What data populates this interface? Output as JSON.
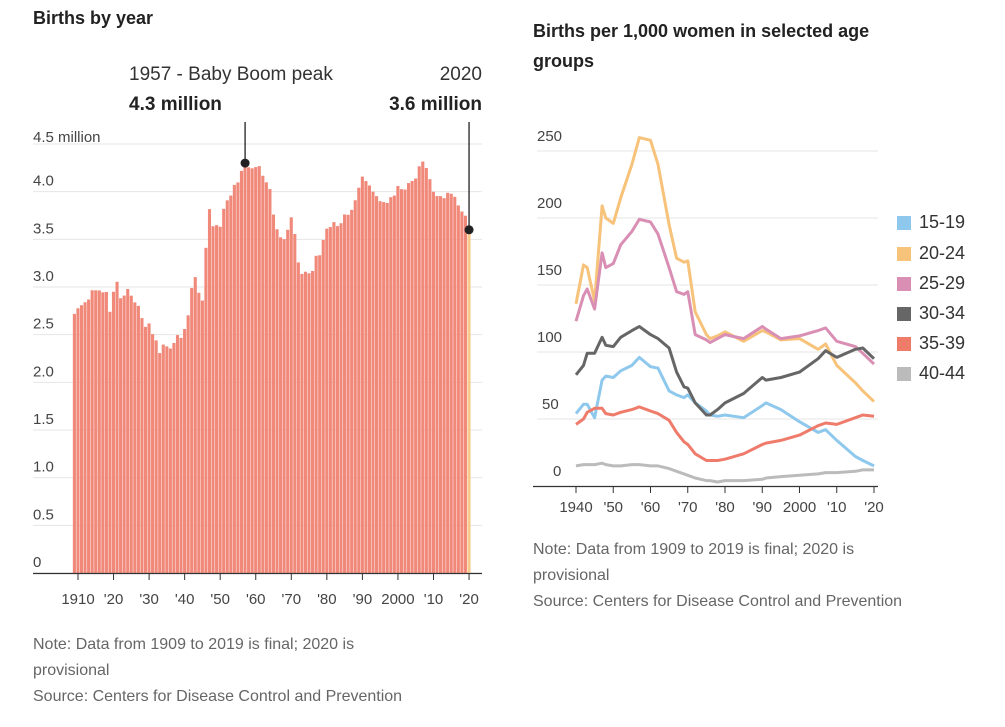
{
  "chart_data": [
    {
      "type": "bar",
      "title": "Births by year",
      "unit_label": "4.5 million",
      "x": [
        1909,
        1910,
        1911,
        1912,
        1913,
        1914,
        1915,
        1916,
        1917,
        1918,
        1919,
        1920,
        1921,
        1922,
        1923,
        1924,
        1925,
        1926,
        1927,
        1928,
        1929,
        1930,
        1931,
        1932,
        1933,
        1934,
        1935,
        1936,
        1937,
        1938,
        1939,
        1940,
        1941,
        1942,
        1943,
        1944,
        1945,
        1946,
        1947,
        1948,
        1949,
        1950,
        1951,
        1952,
        1953,
        1954,
        1955,
        1956,
        1957,
        1958,
        1959,
        1960,
        1961,
        1962,
        1963,
        1964,
        1965,
        1966,
        1967,
        1968,
        1969,
        1970,
        1971,
        1972,
        1973,
        1974,
        1975,
        1976,
        1977,
        1978,
        1979,
        1980,
        1981,
        1982,
        1983,
        1984,
        1985,
        1986,
        1987,
        1988,
        1989,
        1990,
        1991,
        1992,
        1993,
        1994,
        1995,
        1996,
        1997,
        1998,
        1999,
        2000,
        2001,
        2002,
        2003,
        2004,
        2005,
        2006,
        2007,
        2008,
        2009,
        2010,
        2011,
        2012,
        2013,
        2014,
        2015,
        2016,
        2017,
        2018,
        2019,
        2020
      ],
      "values": [
        2.718,
        2.777,
        2.809,
        2.84,
        2.869,
        2.966,
        2.965,
        2.964,
        2.944,
        2.948,
        2.74,
        2.95,
        3.055,
        2.882,
        2.91,
        2.979,
        2.909,
        2.839,
        2.802,
        2.674,
        2.582,
        2.618,
        2.506,
        2.44,
        2.307,
        2.396,
        2.377,
        2.355,
        2.413,
        2.496,
        2.466,
        2.559,
        2.703,
        2.989,
        3.104,
        2.939,
        2.858,
        3.411,
        3.817,
        3.637,
        3.649,
        3.632,
        3.82,
        3.909,
        3.959,
        4.071,
        4.097,
        4.218,
        4.3,
        4.255,
        4.245,
        4.258,
        4.268,
        4.167,
        4.098,
        4.027,
        3.76,
        3.606,
        3.521,
        3.502,
        3.6,
        3.731,
        3.556,
        3.258,
        3.137,
        3.16,
        3.144,
        3.168,
        3.327,
        3.333,
        3.494,
        3.612,
        3.629,
        3.681,
        3.639,
        3.669,
        3.761,
        3.757,
        3.809,
        3.91,
        4.041,
        4.158,
        4.111,
        4.065,
        4.0,
        3.953,
        3.9,
        3.891,
        3.881,
        3.942,
        3.959,
        4.059,
        4.026,
        4.022,
        4.09,
        4.112,
        4.138,
        4.266,
        4.316,
        4.248,
        4.131,
        3.999,
        3.954,
        3.953,
        3.932,
        3.988,
        3.978,
        3.946,
        3.856,
        3.792,
        3.748,
        3.606
      ],
      "provisional_year": 2020,
      "ylim": [
        0,
        4.5
      ],
      "yticks": [
        {
          "v": 0,
          "label": "0"
        },
        {
          "v": 0.5,
          "label": "0.5"
        },
        {
          "v": 1,
          "label": "1.0"
        },
        {
          "v": 1.5,
          "label": "1.5"
        },
        {
          "v": 2,
          "label": "2.0"
        },
        {
          "v": 2.5,
          "label": "2.5"
        },
        {
          "v": 3,
          "label": "3.0"
        },
        {
          "v": 3.5,
          "label": "3.5"
        },
        {
          "v": 4,
          "label": "4.0"
        }
      ],
      "xticks": [
        {
          "v": 1910,
          "label": "1910"
        },
        {
          "v": 1920,
          "label": "'20"
        },
        {
          "v": 1930,
          "label": "'30"
        },
        {
          "v": 1940,
          "label": "'40"
        },
        {
          "v": 1950,
          "label": "'50"
        },
        {
          "v": 1960,
          "label": "'60"
        },
        {
          "v": 1970,
          "label": "'70"
        },
        {
          "v": 1980,
          "label": "'80"
        },
        {
          "v": 1990,
          "label": "'90"
        },
        {
          "v": 2000,
          "label": "2000"
        },
        {
          "v": 2010,
          "label": "'10"
        },
        {
          "v": 2020,
          "label": "'20"
        }
      ],
      "grid": true,
      "colors": {
        "bar": "#f0897a",
        "provisional": "#f7c98a",
        "annotation": "#222222"
      },
      "annotations": [
        {
          "x": 1957,
          "y": 4.3,
          "label": "1957 - Baby Boom peak",
          "value": "4.3 million"
        },
        {
          "x": 2020,
          "y": 3.6,
          "label": "2020",
          "value": "3.6 million"
        }
      ],
      "note": "Note: Data from 1909 to 2019 is final; 2020 is provisional",
      "source": "Source: Centers for Disease Control and Prevention"
    },
    {
      "type": "line",
      "title": "Births per 1,000 women in selected age groups",
      "x": [
        1940,
        1942,
        1943,
        1945,
        1947,
        1948,
        1950,
        1952,
        1955,
        1957,
        1960,
        1962,
        1965,
        1967,
        1969,
        1970,
        1972,
        1975,
        1976,
        1978,
        1980,
        1985,
        1990,
        1991,
        1995,
        2000,
        2005,
        2007,
        2010,
        2015,
        2017,
        2020
      ],
      "series": [
        {
          "name": "15-19",
          "color": "#8ec8ec",
          "values": [
            54,
            61,
            61,
            51,
            79,
            82,
            81,
            86,
            90,
            96,
            89,
            88,
            71,
            68,
            66,
            68,
            62,
            56,
            53,
            52,
            53,
            51,
            60,
            62,
            57,
            48,
            40,
            42,
            34,
            22,
            19,
            15
          ]
        },
        {
          "name": "20-24",
          "color": "#f7c27a",
          "values": [
            136,
            165,
            163,
            138,
            209,
            200,
            196,
            215,
            240,
            260,
            258,
            240,
            195,
            170,
            167,
            168,
            130,
            113,
            110,
            112,
            115,
            108,
            116,
            115,
            109,
            110,
            102,
            106,
            90,
            77,
            71,
            63
          ]
        },
        {
          "name": "25-29",
          "color": "#d98fb4",
          "values": [
            123,
            142,
            147,
            132,
            174,
            163,
            166,
            180,
            190,
            199,
            197,
            188,
            163,
            145,
            143,
            145,
            113,
            109,
            107,
            110,
            113,
            110,
            119,
            117,
            110,
            112,
            116,
            118,
            108,
            104,
            99,
            91
          ]
        },
        {
          "name": "30-34",
          "color": "#666666",
          "values": [
            83,
            90,
            99,
            99,
            111,
            105,
            104,
            111,
            116,
            119,
            113,
            110,
            103,
            85,
            74,
            73,
            62,
            53,
            53,
            57,
            62,
            69,
            81,
            79,
            81,
            85,
            95,
            101,
            96,
            102,
            103,
            95
          ]
        },
        {
          "name": "35-39",
          "color": "#ef7b6b",
          "values": [
            46,
            50,
            55,
            58,
            58,
            54,
            53,
            55,
            57,
            59,
            56,
            54,
            49,
            40,
            33,
            31,
            24,
            19,
            19,
            19,
            20,
            24,
            31,
            32,
            34,
            38,
            45,
            47,
            46,
            51,
            53,
            52
          ]
        },
        {
          "name": "40-44",
          "color": "#bbbbbb",
          "values": [
            15,
            16,
            16,
            16,
            17,
            16,
            15,
            15,
            16,
            16,
            15,
            15,
            13,
            11,
            9,
            8,
            6,
            4,
            4,
            3,
            4,
            4,
            5,
            6,
            7,
            8,
            9,
            10,
            10,
            11,
            12,
            12
          ]
        }
      ],
      "ylim": [
        0,
        250
      ],
      "xlim": [
        1940,
        2020
      ],
      "yticks": [
        {
          "v": 0,
          "label": "0"
        },
        {
          "v": 50,
          "label": "50"
        },
        {
          "v": 100,
          "label": "100"
        },
        {
          "v": 150,
          "label": "150"
        },
        {
          "v": 200,
          "label": "200"
        },
        {
          "v": 250,
          "label": "250"
        }
      ],
      "xticks": [
        {
          "v": 1940,
          "label": "1940"
        },
        {
          "v": 1950,
          "label": "'50"
        },
        {
          "v": 1960,
          "label": "'60"
        },
        {
          "v": 1970,
          "label": "'70"
        },
        {
          "v": 1980,
          "label": "'80"
        },
        {
          "v": 1990,
          "label": "'90"
        },
        {
          "v": 2000,
          "label": "2000"
        },
        {
          "v": 2010,
          "label": "'10"
        },
        {
          "v": 2020,
          "label": "'20"
        }
      ],
      "grid": true,
      "legend_position": "right",
      "note": "Note: Data from 1909 to 2019 is final; 2020 is provisional",
      "source": "Source: Centers for Disease Control and Prevention"
    }
  ]
}
